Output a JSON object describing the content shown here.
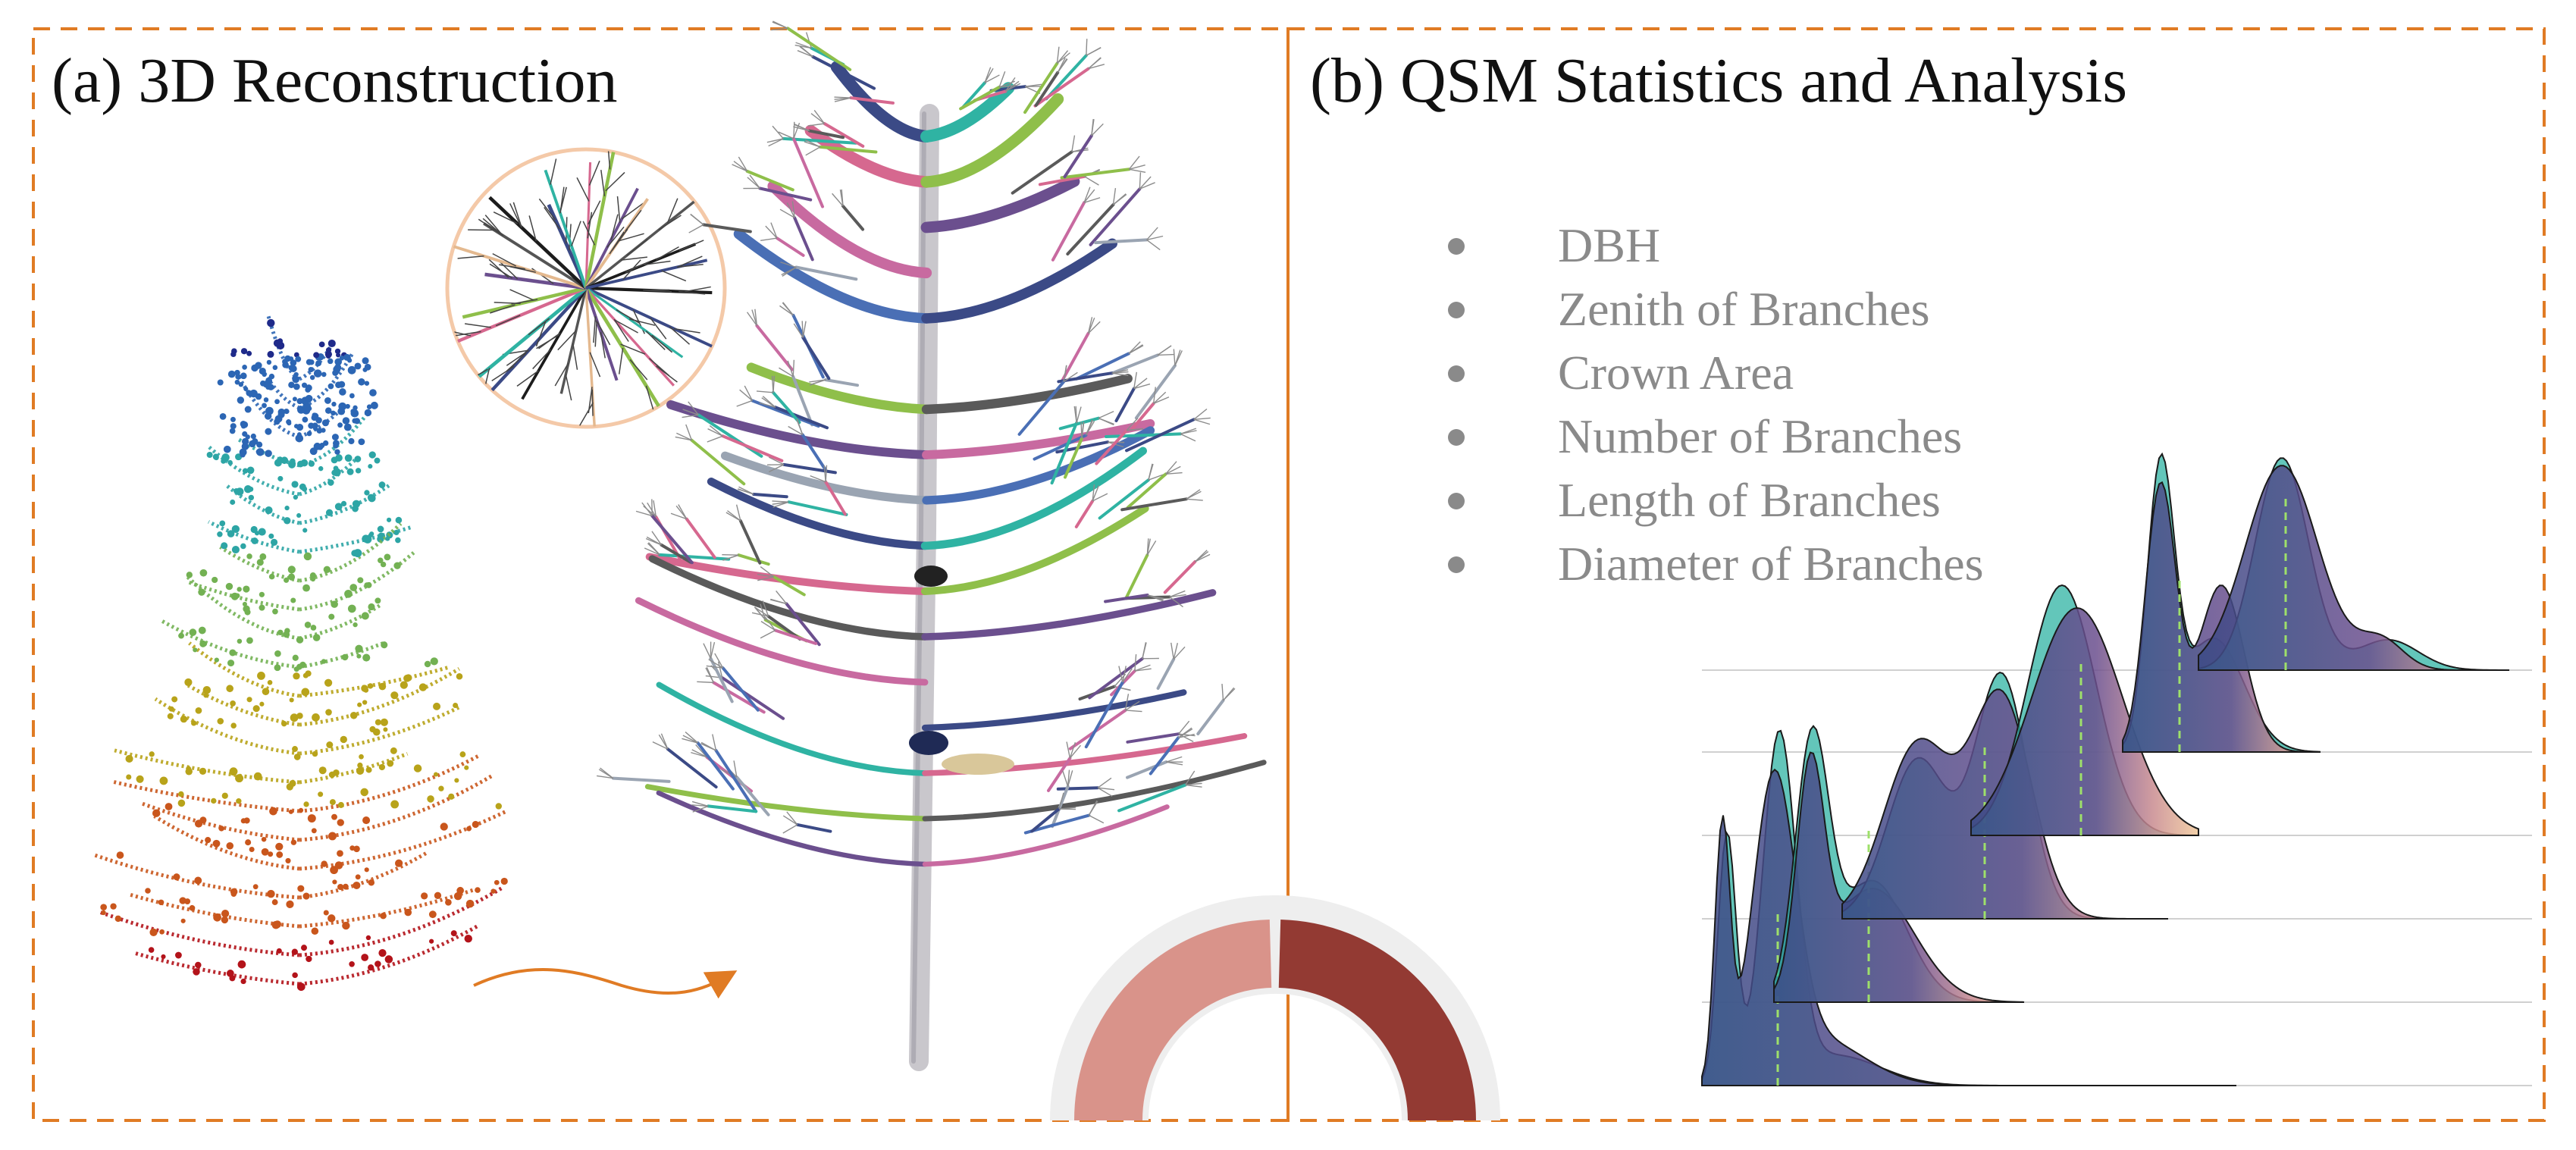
{
  "panels": {
    "a": {
      "title": "(a) 3D Reconstruction"
    },
    "b": {
      "title": "(b) QSM Statistics and Analysis"
    }
  },
  "metrics": [
    {
      "label": "DBH"
    },
    {
      "label": "Zenith  of Branches"
    },
    {
      "label": "Crown Area"
    },
    {
      "label": "Number of Branches"
    },
    {
      "label": "Length of Branches"
    },
    {
      "label": "Diameter of Branches"
    }
  ],
  "colors": {
    "frame": "#e07b24",
    "bullet": "#8a8a8a",
    "ridge_teal": "#2fb3a3",
    "ridge_navy": "#3b4a86",
    "ridge_pink": "#d6688f",
    "ridge_tan": "#e4b98f",
    "median_line": "#9ee06a",
    "gauge_light": "#d9938a",
    "gauge_dark": "#933a33",
    "arrow": "#e07b24"
  },
  "icons": [
    "point-cloud-tree",
    "qsm-tree-model",
    "top-view-crown",
    "curved-arrow",
    "half-donut-gauge"
  ]
}
